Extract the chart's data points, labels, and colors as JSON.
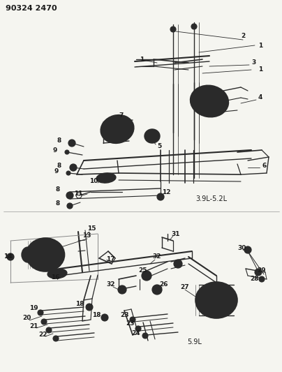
{
  "title": "90324 2470",
  "bg_color": "#f5f5f0",
  "line_color": "#2a2a2a",
  "text_color": "#1a1a1a",
  "label_3_9": "3.9L-5.2L",
  "label_5_9": "5.9L",
  "fig_w": 4.04,
  "fig_h": 5.33,
  "dpi": 100
}
